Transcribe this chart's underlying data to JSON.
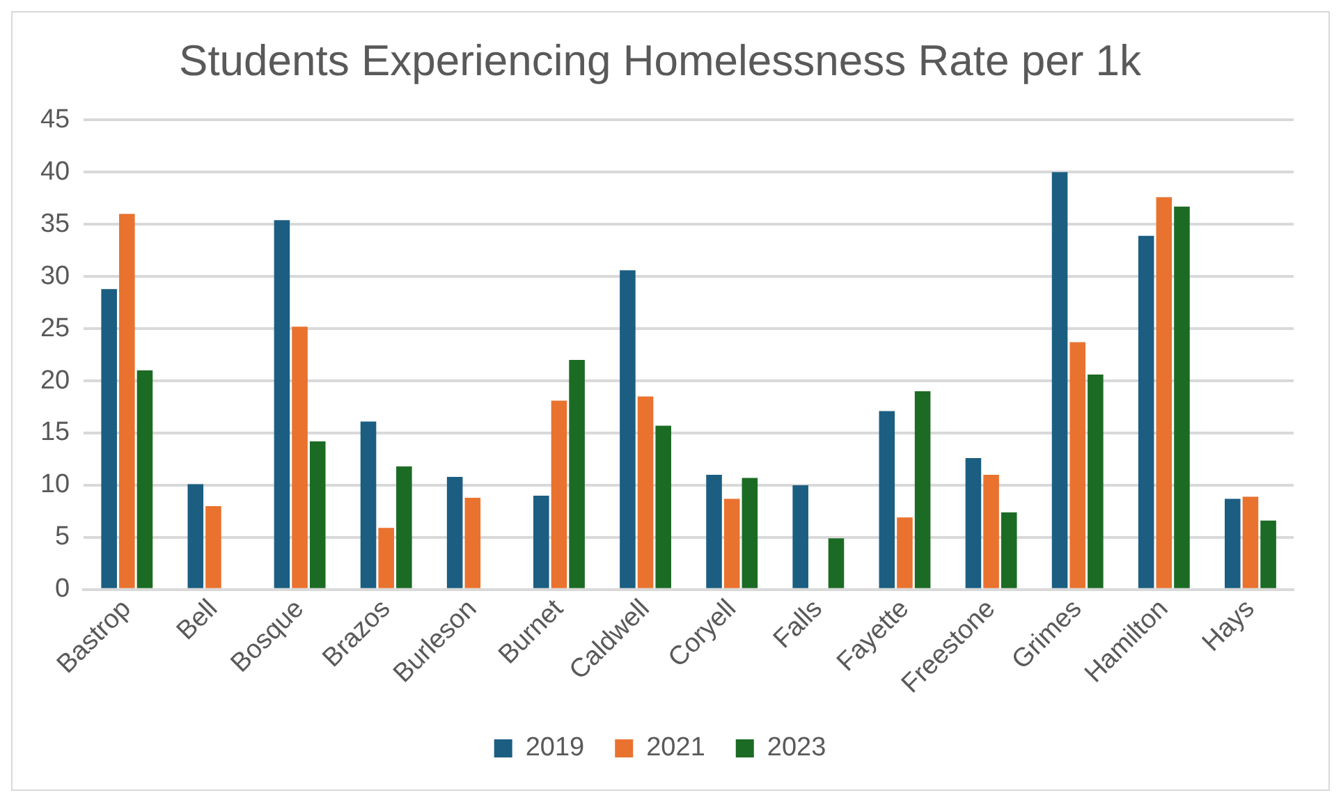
{
  "chart_data": {
    "type": "bar",
    "title": "Students Experiencing Homelessness Rate per 1k",
    "categories": [
      "Bastrop",
      "Bell",
      "Bosque",
      "Brazos",
      "Burleson",
      "Burnet",
      "Caldwell",
      "Coryell",
      "Falls",
      "Fayette",
      "Freestone",
      "Grimes",
      "Hamilton",
      "Hays"
    ],
    "series": [
      {
        "name": "2019",
        "color": "#1b5e82",
        "values": [
          28.8,
          10.1,
          35.4,
          16.1,
          10.8,
          9.0,
          30.6,
          11.0,
          10.0,
          17.1,
          12.6,
          40.0,
          33.9,
          8.7
        ]
      },
      {
        "name": "2021",
        "color": "#e9722f",
        "values": [
          36.0,
          8.0,
          25.2,
          5.9,
          8.8,
          18.1,
          18.5,
          8.7,
          null,
          6.9,
          11.0,
          23.7,
          37.6,
          8.9
        ]
      },
      {
        "name": "2023",
        "color": "#1c6b24",
        "values": [
          21.0,
          null,
          14.2,
          11.8,
          null,
          22.0,
          15.7,
          10.7,
          4.9,
          19.0,
          7.4,
          20.6,
          36.7,
          6.6
        ]
      }
    ],
    "ylim": [
      0,
      45
    ],
    "yticks": [
      0,
      5,
      10,
      15,
      20,
      25,
      30,
      35,
      40,
      45
    ],
    "grid": "y",
    "legend": "bottom"
  }
}
